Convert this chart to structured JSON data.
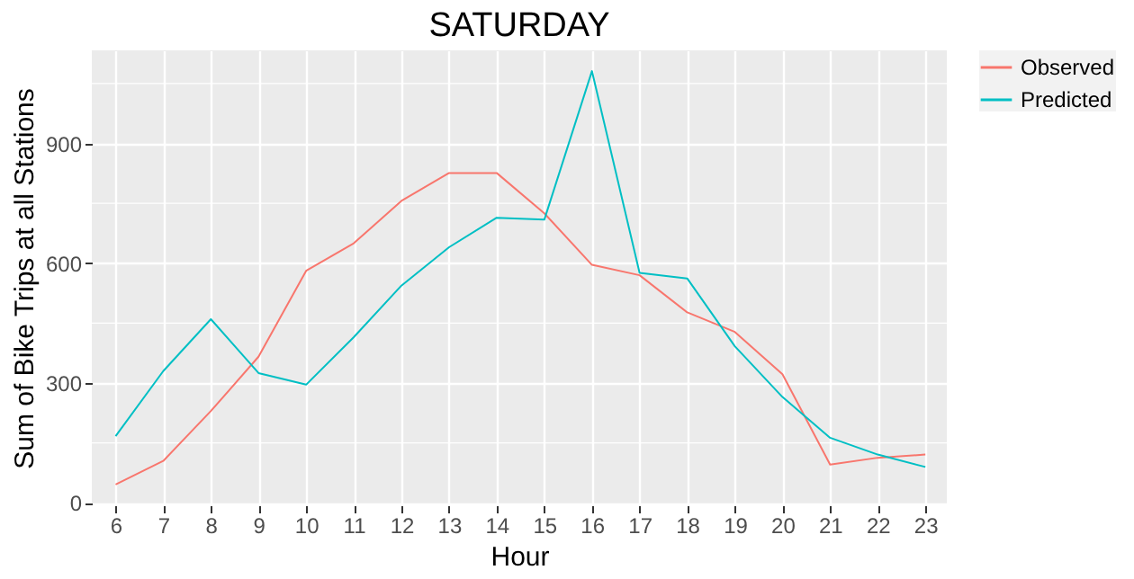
{
  "chart_data": {
    "type": "line",
    "title": "SATURDAY",
    "xlabel": "Hour",
    "ylabel": "Sum of Bike Trips at all Stations",
    "x": [
      6,
      7,
      8,
      9,
      10,
      11,
      12,
      13,
      14,
      15,
      16,
      17,
      18,
      19,
      20,
      21,
      22,
      23
    ],
    "series": [
      {
        "name": "Observed",
        "color": "#f8766d",
        "values": [
          46,
          105,
          230,
          366,
          581,
          650,
          756,
          826,
          826,
          725,
          596,
          570,
          477,
          428,
          322,
          96,
          113,
          121
        ]
      },
      {
        "name": "Predicted",
        "color": "#00bfc4",
        "values": [
          167,
          330,
          460,
          325,
          296,
          415,
          544,
          640,
          714,
          709,
          1081,
          576,
          562,
          392,
          265,
          163,
          121,
          90
        ]
      }
    ],
    "xlim": [
      5.5,
      23.45
    ],
    "xticks": [
      6,
      7,
      8,
      9,
      10,
      11,
      12,
      13,
      14,
      15,
      16,
      17,
      18,
      19,
      20,
      21,
      22,
      23
    ],
    "ylim": [
      -6,
      1133
    ],
    "yticks": [
      0,
      {
        "value": 150,
        "label": null
      },
      300,
      {
        "value": 450,
        "label": null
      },
      600,
      {
        "value": 750,
        "label": null
      },
      900,
      {
        "value": 1050,
        "label": null
      }
    ],
    "grid": true,
    "legend": "right",
    "marker": "none",
    "line_style": "solid"
  }
}
